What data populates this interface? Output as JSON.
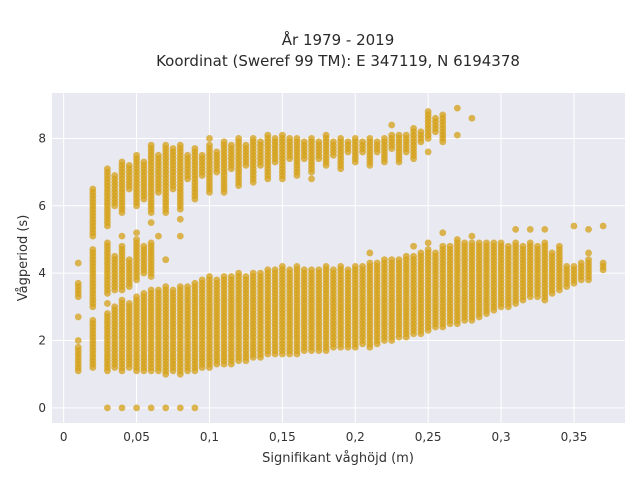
{
  "chart_data": {
    "type": "scatter",
    "title_lines": [
      "År 1979 - 2019",
      "Koordinat (Sweref 99 TM): E 347119, N 6194378"
    ],
    "xlabel": "Signifikant våghöjd (m)",
    "ylabel": "Vågperiod (s)",
    "xlim": [
      -0.008,
      0.385
    ],
    "ylim": [
      -0.45,
      9.35
    ],
    "x_ticks": [
      0,
      0.05,
      0.1,
      0.15,
      0.2,
      0.25,
      0.3,
      0.35
    ],
    "x_tick_labels": [
      "0",
      "0,05",
      "0,1",
      "0,15",
      "0,2",
      "0,25",
      "0,3",
      "0,35"
    ],
    "y_ticks": [
      0,
      2,
      4,
      6,
      8
    ],
    "y_tick_labels": [
      "0",
      "2",
      "4",
      "6",
      "8"
    ],
    "grid": true,
    "background": "#e9e9f1",
    "marker_color": "#d4a017",
    "clusters": [
      {
        "x": 0.01,
        "segments": [
          [
            1.1,
            1.8
          ],
          [
            3.3,
            3.7
          ]
        ],
        "points": [
          4.3,
          2.7,
          2.0
        ]
      },
      {
        "x": 0.02,
        "segments": [
          [
            1.2,
            2.6
          ],
          [
            3.0,
            4.6
          ],
          [
            5.1,
            6.5
          ]
        ],
        "points": [
          4.7
        ]
      },
      {
        "x": 0.03,
        "segments": [
          [
            1.1,
            2.8
          ],
          [
            3.4,
            4.9
          ],
          [
            5.4,
            7.0
          ]
        ],
        "points": [
          0.0,
          3.1,
          7.1
        ]
      },
      {
        "x": 0.035,
        "segments": [
          [
            1.2,
            3.0
          ],
          [
            3.5,
            4.5
          ],
          [
            6.0,
            6.9
          ]
        ],
        "points": []
      },
      {
        "x": 0.04,
        "segments": [
          [
            1.1,
            3.2
          ],
          [
            3.5,
            4.8
          ],
          [
            5.8,
            7.3
          ]
        ],
        "points": [
          0.0,
          5.1
        ]
      },
      {
        "x": 0.045,
        "segments": [
          [
            1.2,
            3.1
          ],
          [
            3.6,
            4.4
          ],
          [
            6.5,
            7.2
          ]
        ],
        "points": []
      },
      {
        "x": 0.05,
        "segments": [
          [
            1.1,
            3.3
          ],
          [
            3.8,
            5.0
          ],
          [
            6.0,
            7.5
          ]
        ],
        "points": [
          0.0,
          5.2
        ]
      },
      {
        "x": 0.055,
        "segments": [
          [
            1.1,
            3.4
          ],
          [
            4.0,
            4.8
          ],
          [
            6.2,
            7.3
          ]
        ],
        "points": []
      },
      {
        "x": 0.06,
        "segments": [
          [
            1.1,
            3.5
          ],
          [
            3.9,
            4.9
          ],
          [
            5.8,
            7.8
          ]
        ],
        "points": [
          0.0,
          5.5
        ]
      },
      {
        "x": 0.065,
        "segments": [
          [
            1.1,
            3.5
          ],
          [
            6.4,
            7.5
          ]
        ],
        "points": [
          5.1
        ]
      },
      {
        "x": 0.07,
        "segments": [
          [
            1.0,
            3.6
          ],
          [
            5.8,
            7.8
          ]
        ],
        "points": [
          0.0,
          4.4
        ]
      },
      {
        "x": 0.075,
        "segments": [
          [
            1.1,
            3.5
          ],
          [
            6.5,
            7.7
          ]
        ],
        "points": []
      },
      {
        "x": 0.08,
        "segments": [
          [
            1.0,
            3.6
          ],
          [
            5.9,
            7.8
          ]
        ],
        "points": [
          0.0,
          5.1,
          5.6
        ]
      },
      {
        "x": 0.085,
        "segments": [
          [
            1.1,
            3.6
          ],
          [
            6.8,
            7.5
          ]
        ],
        "points": []
      },
      {
        "x": 0.09,
        "segments": [
          [
            1.1,
            3.7
          ],
          [
            6.2,
            7.7
          ]
        ],
        "points": [
          0.0
        ]
      },
      {
        "x": 0.095,
        "segments": [
          [
            1.2,
            3.8
          ],
          [
            6.9,
            7.5
          ]
        ],
        "points": []
      },
      {
        "x": 0.1,
        "segments": [
          [
            1.2,
            3.9
          ],
          [
            6.4,
            7.8
          ]
        ],
        "points": [
          8.0
        ]
      },
      {
        "x": 0.105,
        "segments": [
          [
            1.3,
            3.8
          ],
          [
            7.0,
            7.6
          ]
        ],
        "points": []
      },
      {
        "x": 0.11,
        "segments": [
          [
            1.3,
            3.9
          ],
          [
            6.4,
            7.9
          ]
        ],
        "points": []
      },
      {
        "x": 0.115,
        "segments": [
          [
            1.3,
            3.9
          ],
          [
            7.1,
            7.8
          ]
        ],
        "points": []
      },
      {
        "x": 0.12,
        "segments": [
          [
            1.4,
            4.0
          ],
          [
            6.6,
            8.0
          ]
        ],
        "points": []
      },
      {
        "x": 0.125,
        "segments": [
          [
            1.4,
            3.9
          ],
          [
            7.2,
            7.8
          ]
        ],
        "points": []
      },
      {
        "x": 0.13,
        "segments": [
          [
            1.5,
            4.0
          ],
          [
            6.7,
            8.0
          ]
        ],
        "points": []
      },
      {
        "x": 0.135,
        "segments": [
          [
            1.5,
            4.0
          ],
          [
            7.2,
            7.9
          ]
        ],
        "points": []
      },
      {
        "x": 0.14,
        "segments": [
          [
            1.6,
            4.1
          ],
          [
            6.8,
            8.1
          ]
        ],
        "points": []
      },
      {
        "x": 0.145,
        "segments": [
          [
            1.6,
            4.1
          ],
          [
            7.3,
            8.0
          ]
        ],
        "points": []
      },
      {
        "x": 0.15,
        "segments": [
          [
            1.6,
            4.2
          ],
          [
            6.8,
            8.1
          ]
        ],
        "points": []
      },
      {
        "x": 0.155,
        "segments": [
          [
            1.6,
            4.1
          ],
          [
            7.4,
            8.0
          ]
        ],
        "points": []
      },
      {
        "x": 0.16,
        "segments": [
          [
            1.6,
            4.2
          ],
          [
            6.9,
            8.0
          ]
        ],
        "points": []
      },
      {
        "x": 0.165,
        "segments": [
          [
            1.7,
            4.1
          ],
          [
            7.4,
            7.9
          ]
        ],
        "points": []
      },
      {
        "x": 0.17,
        "segments": [
          [
            1.7,
            4.1
          ],
          [
            7.0,
            8.0
          ]
        ],
        "points": [
          6.8
        ]
      },
      {
        "x": 0.175,
        "segments": [
          [
            1.7,
            4.1
          ],
          [
            7.4,
            7.9
          ]
        ],
        "points": []
      },
      {
        "x": 0.18,
        "segments": [
          [
            1.7,
            4.2
          ],
          [
            7.2,
            8.1
          ]
        ],
        "points": []
      },
      {
        "x": 0.185,
        "segments": [
          [
            1.8,
            4.1
          ],
          [
            7.5,
            7.9
          ]
        ],
        "points": []
      },
      {
        "x": 0.19,
        "segments": [
          [
            1.8,
            4.2
          ],
          [
            7.1,
            8.0
          ]
        ],
        "points": []
      },
      {
        "x": 0.195,
        "segments": [
          [
            1.8,
            4.1
          ],
          [
            7.6,
            7.9
          ]
        ],
        "points": []
      },
      {
        "x": 0.2,
        "segments": [
          [
            1.8,
            4.2
          ],
          [
            7.3,
            7.9
          ]
        ],
        "points": [
          8.0
        ]
      },
      {
        "x": 0.205,
        "segments": [
          [
            1.9,
            4.2
          ],
          [
            7.6,
            7.9
          ]
        ],
        "points": []
      },
      {
        "x": 0.21,
        "segments": [
          [
            1.9,
            4.3
          ],
          [
            7.2,
            8.0
          ]
        ],
        "points": [
          4.6,
          1.8
        ]
      },
      {
        "x": 0.215,
        "segments": [
          [
            1.9,
            4.3
          ],
          [
            7.6,
            7.9
          ]
        ],
        "points": []
      },
      {
        "x": 0.22,
        "segments": [
          [
            2.0,
            4.3
          ],
          [
            7.3,
            8.0
          ]
        ],
        "points": [
          4.4
        ]
      },
      {
        "x": 0.225,
        "segments": [
          [
            2.0,
            4.4
          ],
          [
            7.7,
            8.1
          ]
        ],
        "points": [
          8.4
        ]
      },
      {
        "x": 0.23,
        "segments": [
          [
            2.1,
            4.4
          ],
          [
            7.3,
            8.1
          ]
        ],
        "points": []
      },
      {
        "x": 0.235,
        "segments": [
          [
            2.1,
            4.5
          ],
          [
            7.6,
            8.1
          ]
        ],
        "points": []
      },
      {
        "x": 0.24,
        "segments": [
          [
            2.2,
            4.5
          ],
          [
            7.4,
            8.3
          ]
        ],
        "points": [
          4.8
        ]
      },
      {
        "x": 0.245,
        "segments": [
          [
            2.2,
            4.6
          ],
          [
            7.9,
            8.2
          ]
        ],
        "points": []
      },
      {
        "x": 0.25,
        "segments": [
          [
            2.3,
            4.7
          ],
          [
            8.0,
            8.8
          ]
        ],
        "points": [
          7.6,
          4.9
        ]
      },
      {
        "x": 0.255,
        "segments": [
          [
            2.4,
            4.6
          ],
          [
            8.2,
            8.6
          ]
        ],
        "points": []
      },
      {
        "x": 0.26,
        "segments": [
          [
            2.4,
            4.8
          ],
          [
            7.9,
            8.7
          ]
        ],
        "points": [
          5.2
        ]
      },
      {
        "x": 0.265,
        "segments": [
          [
            2.5,
            4.8
          ]
        ],
        "points": []
      },
      {
        "x": 0.27,
        "segments": [
          [
            2.5,
            5.0
          ]
        ],
        "points": [
          8.9,
          8.1
        ]
      },
      {
        "x": 0.275,
        "segments": [
          [
            2.6,
            4.9
          ]
        ],
        "points": []
      },
      {
        "x": 0.28,
        "segments": [
          [
            2.6,
            4.9
          ]
        ],
        "points": [
          8.6,
          5.1
        ]
      },
      {
        "x": 0.285,
        "segments": [
          [
            2.7,
            4.9
          ]
        ],
        "points": []
      },
      {
        "x": 0.29,
        "segments": [
          [
            2.8,
            4.9
          ]
        ],
        "points": []
      },
      {
        "x": 0.295,
        "segments": [
          [
            2.9,
            4.9
          ]
        ],
        "points": []
      },
      {
        "x": 0.3,
        "segments": [
          [
            3.0,
            4.9
          ]
        ],
        "points": []
      },
      {
        "x": 0.305,
        "segments": [
          [
            3.0,
            4.8
          ]
        ],
        "points": []
      },
      {
        "x": 0.31,
        "segments": [
          [
            3.1,
            4.9
          ]
        ],
        "points": [
          5.3
        ]
      },
      {
        "x": 0.315,
        "segments": [
          [
            3.2,
            4.8
          ]
        ],
        "points": []
      },
      {
        "x": 0.32,
        "segments": [
          [
            3.3,
            4.9
          ]
        ],
        "points": [
          5.3
        ]
      },
      {
        "x": 0.325,
        "segments": [
          [
            3.3,
            4.8
          ]
        ],
        "points": []
      },
      {
        "x": 0.33,
        "segments": [
          [
            3.3,
            4.9
          ]
        ],
        "points": [
          5.3,
          3.2
        ]
      },
      {
        "x": 0.335,
        "segments": [
          [
            3.4,
            4.6
          ]
        ],
        "points": []
      },
      {
        "x": 0.34,
        "segments": [
          [
            3.5,
            4.8
          ]
        ],
        "points": []
      },
      {
        "x": 0.345,
        "segments": [
          [
            3.6,
            4.2
          ]
        ],
        "points": []
      },
      {
        "x": 0.35,
        "segments": [
          [
            3.7,
            4.2
          ]
        ],
        "points": [
          5.4
        ]
      },
      {
        "x": 0.355,
        "segments": [
          [
            3.8,
            4.3
          ]
        ],
        "points": []
      },
      {
        "x": 0.36,
        "segments": [
          [
            3.8,
            4.4
          ]
        ],
        "points": [
          5.3,
          4.6
        ]
      },
      {
        "x": 0.37,
        "segments": [
          [
            4.1,
            4.3
          ]
        ],
        "points": [
          5.4
        ]
      }
    ]
  }
}
